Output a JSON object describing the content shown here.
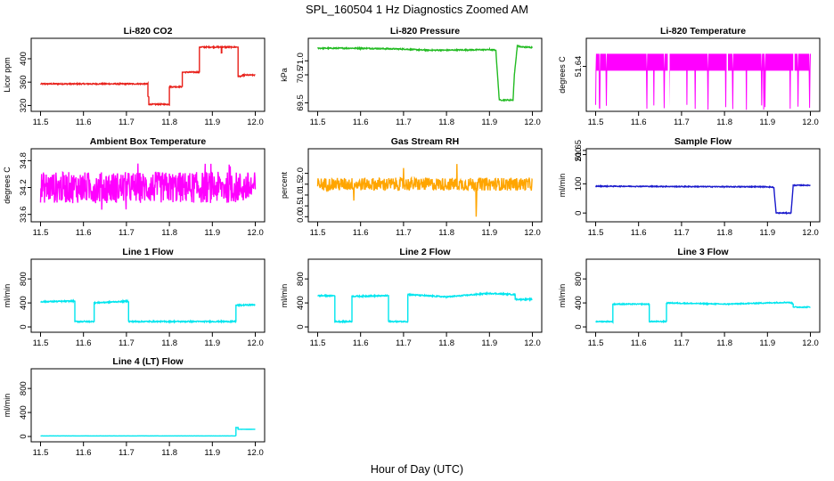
{
  "figure": {
    "title": "SPL_160504 1 Hz Diagnostics Zoomed AM",
    "xlabel": "Hour of Day (UTC)"
  },
  "chart_data": [
    {
      "type": "line",
      "title": "Li-820 CO2",
      "ylabel": "Licor ppm",
      "color": "#e8201a",
      "xlim": [
        11.5,
        12.0
      ],
      "ylim": [
        315,
        430
      ],
      "xticks": [
        "11.5",
        "11.6",
        "11.7",
        "11.8",
        "11.9",
        "12.0"
      ],
      "yticks": [
        320,
        360,
        400
      ],
      "noise": 1,
      "x": [
        11.5,
        11.75,
        11.75,
        11.752,
        11.752,
        11.8,
        11.8,
        11.83,
        11.83,
        11.87,
        11.87,
        11.921,
        11.921,
        11.922,
        11.922,
        11.96,
        11.96,
        11.97,
        11.97,
        12.0
      ],
      "y": [
        357,
        357,
        335,
        335,
        322,
        322,
        352,
        352,
        377,
        377,
        420,
        420,
        410,
        410,
        420,
        420,
        370,
        370,
        372,
        372
      ]
    },
    {
      "type": "line",
      "title": "Li-820 Pressure",
      "ylabel": "kPa",
      "color": "#22bb22",
      "xlim": [
        11.5,
        12.0
      ],
      "ylim": [
        69.3,
        71.7
      ],
      "xticks": [
        "11.5",
        "11.6",
        "11.7",
        "11.8",
        "11.9",
        "12.0"
      ],
      "yticks": [
        "69.5",
        "70.5",
        "71.0"
      ],
      "noise": 0.02,
      "x": [
        11.5,
        11.6,
        11.7,
        11.75,
        11.8,
        11.9,
        11.915,
        11.92,
        11.923,
        11.955,
        11.958,
        11.965,
        11.97,
        12.0
      ],
      "y": [
        71.45,
        71.45,
        71.42,
        71.38,
        71.38,
        71.4,
        71.38,
        70.2,
        69.6,
        69.6,
        70.5,
        71.55,
        71.5,
        71.48
      ]
    },
    {
      "type": "line",
      "title": "Li-820 Temperature",
      "ylabel": "degrees C",
      "color": "#ff00ff",
      "xlim": [
        11.5,
        12.0
      ],
      "ylim": [
        51.645,
        51.637
      ],
      "xticks": [
        "11.5",
        "11.6",
        "11.7",
        "11.8",
        "11.9",
        "12.0"
      ],
      "yticks": [
        "51.65",
        "51.63",
        "51.64"
      ],
      "x": [
        11.5,
        12.0
      ],
      "y": [
        51.64,
        51.64
      ]
    },
    {
      "type": "line",
      "title": "Ambient Box Temperature",
      "ylabel": "degrees C",
      "color": "#ff00ff",
      "xlim": [
        11.5,
        12.0
      ],
      "ylim": [
        33.5,
        35.0
      ],
      "xticks": [
        "11.5",
        "11.6",
        "11.7",
        "11.8",
        "11.9",
        "12.0"
      ],
      "yticks": [
        "33.6",
        "34.2",
        "34.8"
      ],
      "noise": 0.35,
      "x": [
        11.5,
        12.0
      ],
      "y": [
        34.2,
        34.2
      ]
    },
    {
      "type": "line",
      "title": "Gas Stream RH",
      "ylabel": "percent",
      "color": "#ffa500",
      "xlim": [
        11.5,
        12.0
      ],
      "ylim": [
        -0.1,
        3.0
      ],
      "xticks": [
        "11.5",
        "11.6",
        "11.7",
        "11.8",
        "11.9",
        "12.0"
      ],
      "yticks": [
        "0.0",
        "0.5",
        "1.0",
        "1.5",
        "2.0"
      ],
      "noise": 0.3,
      "x": [
        11.5,
        12.0
      ],
      "y": [
        1.5,
        1.5
      ]
    },
    {
      "type": "line",
      "title": "Sample Flow",
      "ylabel": "ml/min",
      "color": "#1a1acc",
      "xlim": [
        11.5,
        12.0
      ],
      "ylim": [
        -20,
        210
      ],
      "xticks": [
        "11.5",
        "11.6",
        "11.7",
        "11.8",
        "11.9",
        "12.0"
      ],
      "yticks": [
        0,
        100,
        200
      ],
      "noise": 1.5,
      "x": [
        11.5,
        11.8,
        11.9,
        11.915,
        11.92,
        11.955,
        11.96,
        12.0
      ],
      "y": [
        92,
        90,
        90,
        88,
        0,
        0,
        95,
        95
      ]
    },
    {
      "type": "line",
      "title": "Line 1 Flow",
      "ylabel": "ml/min",
      "color": "#00e5ee",
      "xlim": [
        11.5,
        12.0
      ],
      "ylim": [
        -40,
        1080
      ],
      "xticks": [
        "11.5",
        "11.6",
        "11.7",
        "11.8",
        "11.9",
        "12.0"
      ],
      "yticks": [
        0,
        400,
        800
      ],
      "noise": 10,
      "x": [
        11.5,
        11.58,
        11.58,
        11.625,
        11.625,
        11.705,
        11.705,
        11.955,
        11.955,
        12.0
      ],
      "y": [
        420,
        430,
        90,
        90,
        400,
        430,
        90,
        90,
        360,
        370
      ]
    },
    {
      "type": "line",
      "title": "Line 2 Flow",
      "ylabel": "ml/min",
      "color": "#00e5ee",
      "xlim": [
        11.5,
        12.0
      ],
      "ylim": [
        -40,
        1080
      ],
      "xticks": [
        "11.5",
        "11.6",
        "11.7",
        "11.8",
        "11.9",
        "12.0"
      ],
      "yticks": [
        0,
        400,
        800
      ],
      "noise": 10,
      "x": [
        11.5,
        11.54,
        11.54,
        11.58,
        11.58,
        11.665,
        11.665,
        11.71,
        11.71,
        11.8,
        11.9,
        11.96,
        11.96,
        12.0
      ],
      "y": [
        520,
        520,
        90,
        90,
        510,
        520,
        90,
        90,
        540,
        500,
        560,
        540,
        460,
        460
      ]
    },
    {
      "type": "line",
      "title": "Line 3 Flow",
      "ylabel": "ml/min",
      "color": "#00e5ee",
      "xlim": [
        11.5,
        12.0
      ],
      "ylim": [
        -40,
        1080
      ],
      "xticks": [
        "11.5",
        "11.6",
        "11.7",
        "11.8",
        "11.9",
        "12.0"
      ],
      "yticks": [
        0,
        400,
        800
      ],
      "noise": 8,
      "x": [
        11.5,
        11.54,
        11.54,
        11.625,
        11.625,
        11.665,
        11.665,
        11.8,
        11.95,
        11.96,
        11.96,
        12.0
      ],
      "y": [
        90,
        90,
        380,
        380,
        90,
        90,
        400,
        380,
        410,
        390,
        330,
        330
      ]
    },
    {
      "type": "line",
      "title": "Line 4 (LT) Flow",
      "ylabel": "ml/min",
      "color": "#00e5ee",
      "xlim": [
        11.5,
        12.0
      ],
      "ylim": [
        -40,
        1080
      ],
      "xticks": [
        "11.5",
        "11.6",
        "11.7",
        "11.8",
        "11.9",
        "12.0"
      ],
      "yticks": [
        0,
        400,
        800
      ],
      "noise": 1,
      "x": [
        11.5,
        11.955,
        11.955,
        11.96,
        11.96,
        12.0
      ],
      "y": [
        10,
        10,
        150,
        150,
        120,
        120
      ]
    }
  ]
}
